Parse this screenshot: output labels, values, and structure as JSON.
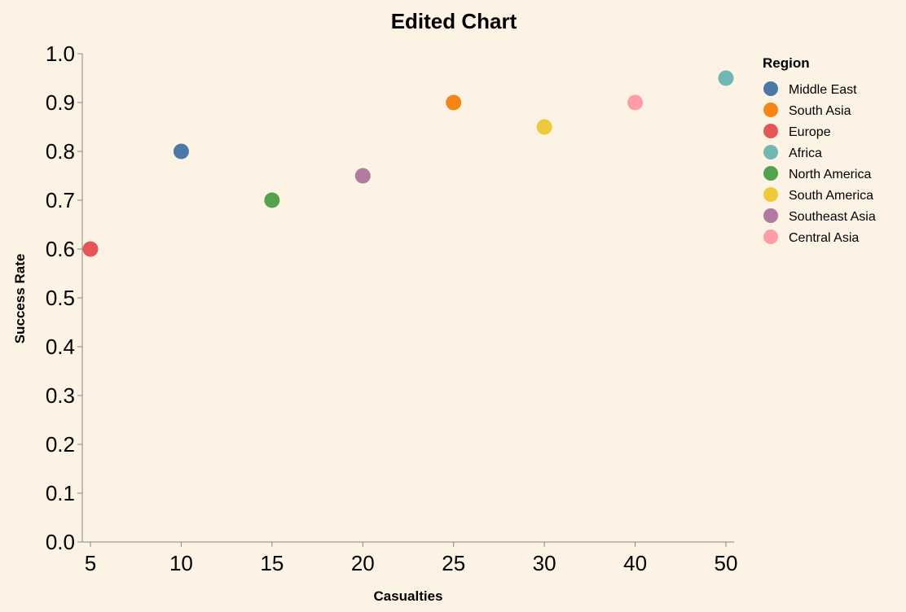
{
  "chart_data": {
    "type": "scatter",
    "title": "Edited Chart",
    "xlabel": "Casualties",
    "ylabel": "Success Rate",
    "x_ticks": [
      5,
      10,
      15,
      20,
      25,
      30,
      40,
      50
    ],
    "y_ticks": [
      "0.0",
      "0.1",
      "0.2",
      "0.3",
      "0.4",
      "0.5",
      "0.6",
      "0.7",
      "0.8",
      "0.9",
      "1.0"
    ],
    "ylim": [
      0,
      1
    ],
    "grid": false,
    "legend": {
      "title": "Region",
      "placement": "right"
    },
    "series": [
      {
        "name": "Middle East",
        "color": "#4c78a8",
        "x": 10,
        "y": 0.8
      },
      {
        "name": "South Asia",
        "color": "#f58518",
        "x": 25,
        "y": 0.9
      },
      {
        "name": "Europe",
        "color": "#e45756",
        "x": 5,
        "y": 0.6
      },
      {
        "name": "Africa",
        "color": "#72b7b2",
        "x": 50,
        "y": 0.95
      },
      {
        "name": "North America",
        "color": "#54a24b",
        "x": 15,
        "y": 0.7
      },
      {
        "name": "South America",
        "color": "#eeca3b",
        "x": 30,
        "y": 0.85
      },
      {
        "name": "Southeast Asia",
        "color": "#b279a2",
        "x": 20,
        "y": 0.75
      },
      {
        "name": "Central Asia",
        "color": "#ff9da6",
        "x": 40,
        "y": 0.9
      }
    ]
  }
}
